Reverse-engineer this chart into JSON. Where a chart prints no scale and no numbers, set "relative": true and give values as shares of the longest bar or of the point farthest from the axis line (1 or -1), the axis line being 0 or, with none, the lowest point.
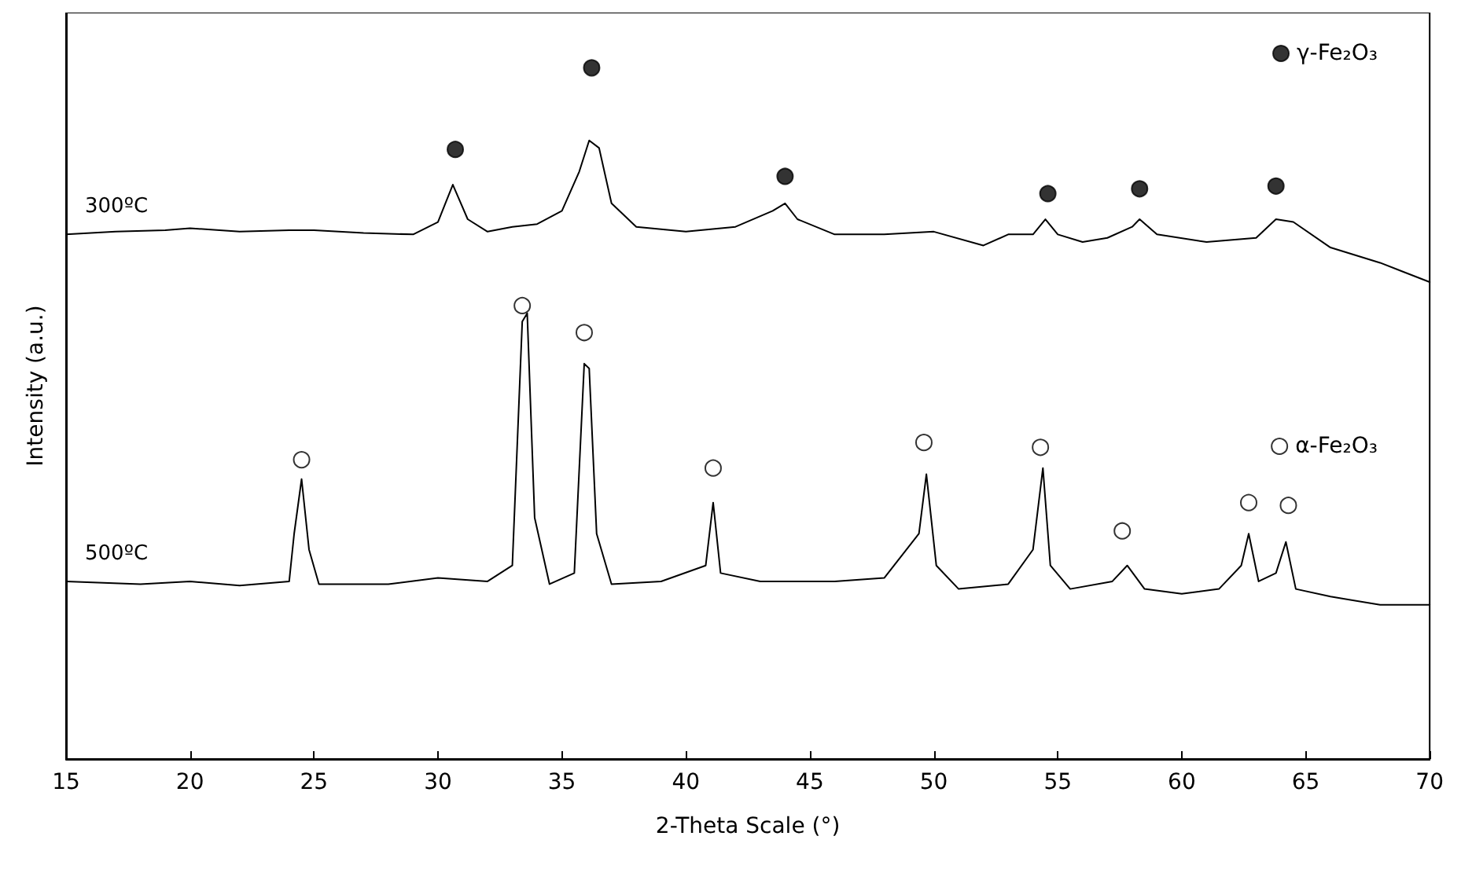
{
  "chart_data": {
    "type": "line",
    "relative": true,
    "xlabel": "2-Theta Scale (°)",
    "ylabel": "Intensity (a.u.)",
    "xlim": [
      15,
      70
    ],
    "xticks": [
      15,
      20,
      25,
      30,
      35,
      40,
      45,
      50,
      55,
      60,
      65,
      70
    ],
    "grid": false,
    "legend": "top right",
    "tick_labels": "x",
    "marker": "none",
    "line_style": "solid",
    "series": [
      {
        "name": "300ºC",
        "color": "#000000",
        "x": [
          15,
          17,
          19,
          20,
          22,
          24,
          25,
          27,
          29,
          30,
          30.6,
          31.2,
          32,
          33,
          34,
          35,
          35.7,
          36.1,
          36.5,
          37,
          38,
          40,
          42,
          43.5,
          44,
          44.5,
          46,
          48,
          50,
          52,
          53,
          54,
          54.5,
          55,
          56,
          57,
          58,
          58.3,
          59,
          61,
          63,
          63.8,
          64.5,
          66,
          68,
          70
        ],
        "values": [
          0.759,
          0.763,
          0.765,
          0.768,
          0.763,
          0.765,
          0.765,
          0.761,
          0.759,
          0.777,
          0.831,
          0.781,
          0.763,
          0.77,
          0.774,
          0.793,
          0.85,
          0.895,
          0.884,
          0.804,
          0.77,
          0.763,
          0.77,
          0.793,
          0.804,
          0.781,
          0.759,
          0.759,
          0.763,
          0.743,
          0.759,
          0.759,
          0.781,
          0.759,
          0.748,
          0.754,
          0.77,
          0.781,
          0.759,
          0.748,
          0.754,
          0.781,
          0.777,
          0.74,
          0.718,
          0.69
        ]
      },
      {
        "name": "500ºC",
        "color": "#000000",
        "x": [
          15,
          18,
          20,
          22,
          24,
          24.2,
          24.5,
          24.8,
          25.2,
          28,
          30,
          32,
          33,
          33.4,
          33.6,
          33.9,
          34.5,
          35.5,
          35.9,
          36.1,
          36.4,
          37,
          39,
          40.8,
          41.1,
          41.4,
          43,
          46,
          48,
          49.4,
          49.7,
          50.1,
          51,
          53,
          54,
          54.4,
          54.7,
          55.5,
          57.2,
          57.8,
          58.5,
          60,
          61.5,
          62.4,
          62.7,
          63.1,
          63.8,
          64.2,
          64.6,
          66,
          68,
          70
        ],
        "values": [
          0.257,
          0.253,
          0.257,
          0.251,
          0.257,
          0.326,
          0.405,
          0.303,
          0.253,
          0.253,
          0.262,
          0.257,
          0.28,
          0.633,
          0.645,
          0.349,
          0.253,
          0.269,
          0.572,
          0.565,
          0.326,
          0.253,
          0.257,
          0.28,
          0.371,
          0.269,
          0.257,
          0.257,
          0.262,
          0.326,
          0.412,
          0.28,
          0.246,
          0.253,
          0.303,
          0.421,
          0.28,
          0.246,
          0.257,
          0.28,
          0.246,
          0.239,
          0.246,
          0.28,
          0.326,
          0.257,
          0.269,
          0.314,
          0.246,
          0.235,
          0.223,
          0.223
        ]
      },
      {
        "type": "scatter",
        "name": "γ-Fe₂O₃",
        "color": "#000000",
        "marker": "circle",
        "x": [
          30.7,
          36.2,
          44,
          54.6,
          58.3,
          63.8
        ],
        "values": [
          0.882,
          1.0,
          0.843,
          0.818,
          0.825,
          0.829
        ]
      },
      {
        "type": "scatter",
        "name": "α-Fe₂O₃",
        "color": "#ffffff",
        "marker": "circle",
        "x": [
          24.5,
          33.4,
          35.9,
          41.1,
          49.6,
          54.3,
          57.6,
          62.7,
          64.3
        ],
        "values": [
          0.433,
          0.656,
          0.617,
          0.421,
          0.458,
          0.451,
          0.33,
          0.371,
          0.367
        ]
      }
    ]
  }
}
